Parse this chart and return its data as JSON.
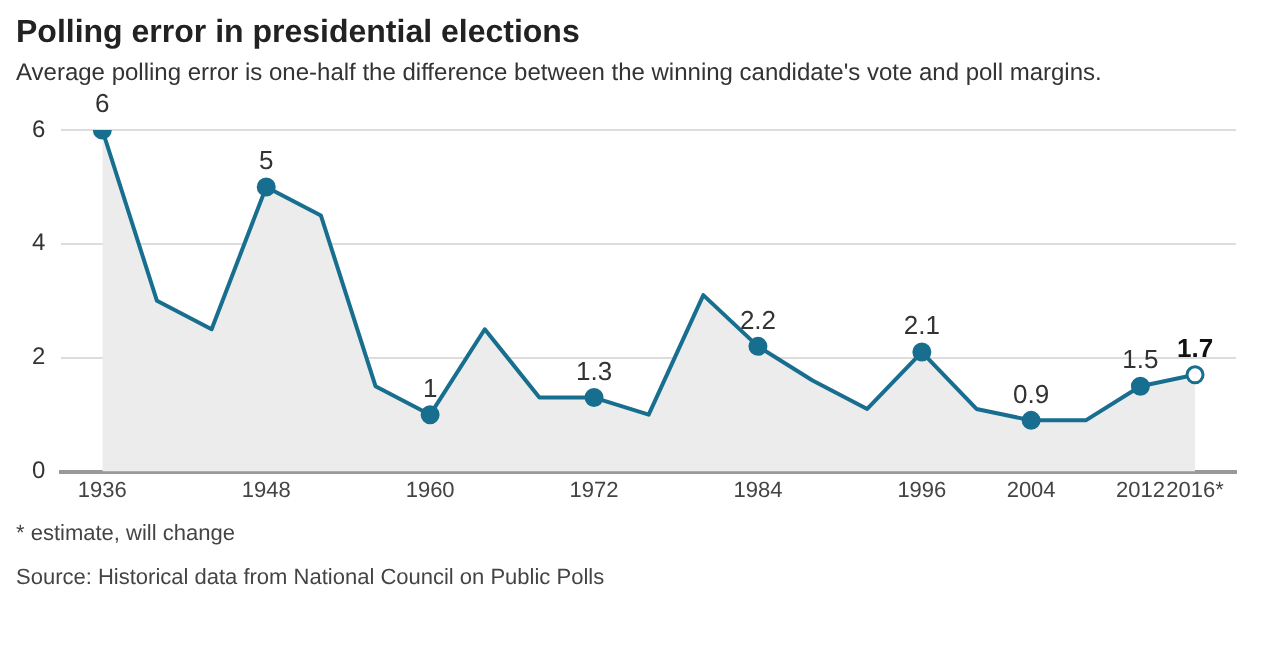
{
  "chart_data": {
    "type": "area",
    "title": "Polling error in presidential elections",
    "subtitle": "Average polling error is one-half the difference between the winning candidate's vote and poll margins.",
    "x": [
      1936,
      1940,
      1944,
      1948,
      1952,
      1956,
      1960,
      1964,
      1968,
      1972,
      1976,
      1980,
      1984,
      1988,
      1992,
      1996,
      2000,
      2004,
      2008,
      2012,
      2016
    ],
    "series": [
      {
        "color": "#186e8f",
        "values": [
          6,
          3,
          2.5,
          5,
          4.5,
          1.5,
          1,
          2.5,
          1.3,
          1.3,
          1,
          3.1,
          2.2,
          1.6,
          1.1,
          2.1,
          1.1,
          0.9,
          0.9,
          1.5,
          1.7
        ],
        "value_labels": [
          "6",
          null,
          null,
          "5",
          null,
          null,
          "1",
          null,
          null,
          "1.3",
          null,
          null,
          "2.2",
          null,
          null,
          "2.1",
          null,
          "0.9",
          null,
          "1.5",
          "1.7"
        ]
      }
    ],
    "xlim": [
      1933,
      2019
    ],
    "xticks": [
      1936,
      1948,
      1960,
      1972,
      1984,
      1996,
      2004,
      2012,
      {
        "value": 2016,
        "label": "2016*"
      }
    ],
    "ylim": [
      0,
      6
    ],
    "yticks": [
      0,
      2,
      4,
      6
    ],
    "grid": "y",
    "legend": false,
    "annotations": [
      "* estimate, will change",
      "Source: Historical data from National Council on Public Polls"
    ]
  }
}
